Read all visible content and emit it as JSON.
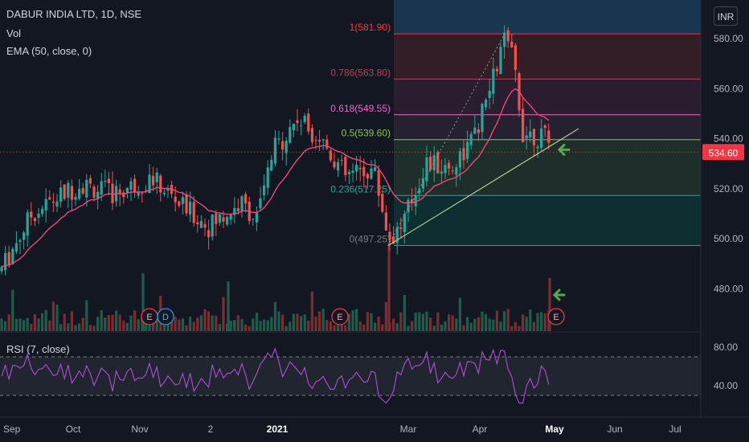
{
  "header": {
    "symbol_title": "DABUR INDIA LTD, 1D, NSE",
    "vol_label": "Vol",
    "ema_label": "EMA (50, close, 0)",
    "currency": "INR"
  },
  "rsi_panel": {
    "label": "RSI (7, close)",
    "upper_band": 70,
    "lower_band": 30,
    "ticks": [
      "80.00",
      "40.00"
    ]
  },
  "colors": {
    "background": "#131722",
    "up": "#26a69a",
    "down": "#ef5350",
    "ema": "#e84a7a",
    "rsi": "#b04fd6",
    "current_price_badge": "#f23645",
    "earnings_marker": "#f23645",
    "dividend_marker": "#2196f3",
    "annotation_arrow": "#4caf50"
  },
  "chart_data": {
    "type": "candlestick",
    "title": "DABUR INDIA LTD, 1D, NSE",
    "current_price": 534.6,
    "current_price_label": "534.60",
    "y_axis": {
      "ticks": [
        480,
        500,
        520,
        540,
        560,
        580
      ],
      "tick_labels": [
        "480.00",
        "500.00",
        "520.00",
        "540.00",
        "560.00",
        "580.00"
      ],
      "range": [
        466,
        590
      ]
    },
    "x_axis": {
      "tick_labels": [
        "Sep",
        "Oct",
        "Nov",
        "2",
        "2021",
        "Mar",
        "Apr",
        "May",
        "Jun",
        "Jul"
      ],
      "highlighted": [
        "2021",
        "May"
      ]
    },
    "fibonacci": {
      "levels": [
        {
          "ratio": "1",
          "price": 581.9,
          "label": "1(581.90)",
          "color": "#f23645"
        },
        {
          "ratio": "0.786",
          "price": 563.8,
          "label": "0.786(563.80)",
          "color": "#b2435b"
        },
        {
          "ratio": "0.618",
          "price": 549.55,
          "label": "0.618(549.55)",
          "color": "#ec6acb"
        },
        {
          "ratio": "0.5",
          "price": 539.6,
          "label": "0.5(539.60)",
          "color": "#8bc34a"
        },
        {
          "ratio": "0.236",
          "price": 517.25,
          "label": "0.236(517.25)",
          "color": "#26a69a"
        },
        {
          "ratio": "0",
          "price": 497.25,
          "label": "0(497.25)",
          "color": "#787b86"
        }
      ]
    },
    "events": [
      {
        "type": "earnings",
        "label": "E",
        "month": "Nov"
      },
      {
        "type": "dividend",
        "label": "D",
        "month": "Nov"
      },
      {
        "type": "earnings",
        "label": "E",
        "month": "Feb"
      },
      {
        "type": "earnings",
        "label": "E",
        "month": "May"
      }
    ],
    "trendline": "rising support line from late Feb low to early May",
    "annotations": [
      "green arrow at price",
      "green arrow at volume"
    ]
  }
}
